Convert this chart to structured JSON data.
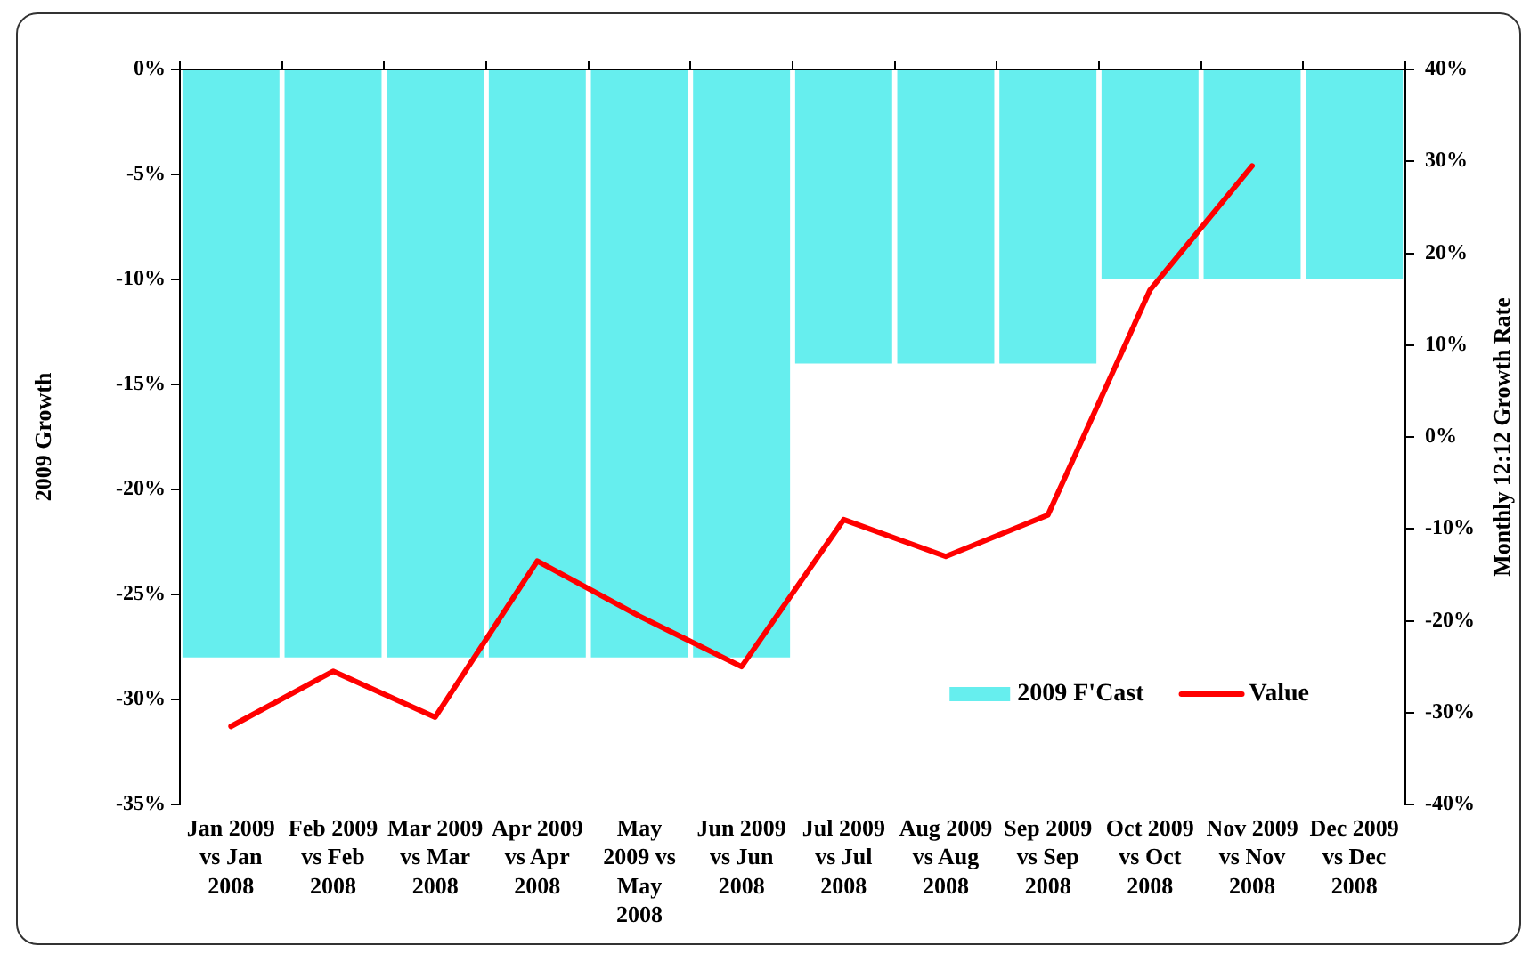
{
  "chart_data": {
    "type": "line",
    "categories": [
      "Jan 2009\nvs Jan\n2008",
      "Feb 2009\nvs Feb\n2008",
      "Mar 2009\nvs Mar\n2008",
      "Apr 2009\nvs Apr\n2008",
      "May\n2009 vs\nMay\n2008",
      "Jun 2009\nvs Jun\n2008",
      "Jul 2009\nvs Jul\n2008",
      "Aug 2009\nvs Aug\n2008",
      "Sep 2009\nvs Sep\n2008",
      "Oct 2009\nvs Oct\n2008",
      "Nov 2009\nvs Nov\n2008",
      "Dec 2009\nvs Dec\n2008"
    ],
    "series": [
      {
        "name": "2009 F'Cast",
        "type": "bar",
        "color": "#66eeee",
        "values": [
          -28,
          -28,
          -28,
          -28,
          -28,
          -28,
          -14,
          -14,
          -14,
          -10,
          -10,
          -10
        ]
      },
      {
        "name": "Value",
        "axis": "y2",
        "color": "#ff0000",
        "values": [
          -31.5,
          -25.5,
          -30.5,
          -13.5,
          -19.5,
          -25,
          -9,
          -13,
          -8.5,
          16,
          29.5,
          null
        ]
      }
    ],
    "ylabel": "2009 Growth",
    "y2label": "Monthly 12:12 Growth Rate",
    "ylim": [
      -35,
      0
    ],
    "yticks": [
      {
        "value": 0,
        "label": "0%"
      },
      {
        "value": -5,
        "label": "-5%"
      },
      {
        "value": -10,
        "label": "-10%"
      },
      {
        "value": -15,
        "label": "-15%"
      },
      {
        "value": -20,
        "label": "-20%"
      },
      {
        "value": -25,
        "label": "-25%"
      },
      {
        "value": -30,
        "label": "-30%"
      },
      {
        "value": -35,
        "label": "-35%"
      }
    ],
    "y2lim": [
      -40,
      40
    ],
    "y2ticks": [
      {
        "value": 40,
        "label": "40%"
      },
      {
        "value": 30,
        "label": "30%"
      },
      {
        "value": 20,
        "label": "20%"
      },
      {
        "value": 10,
        "label": "10%"
      },
      {
        "value": 0,
        "label": "0%"
      },
      {
        "value": -10,
        "label": "-10%"
      },
      {
        "value": -20,
        "label": "-20%"
      },
      {
        "value": -30,
        "label": "-30%"
      },
      {
        "value": -40,
        "label": "-40%"
      }
    ],
    "legend": "bottom right",
    "grid": false,
    "marker": "none"
  }
}
